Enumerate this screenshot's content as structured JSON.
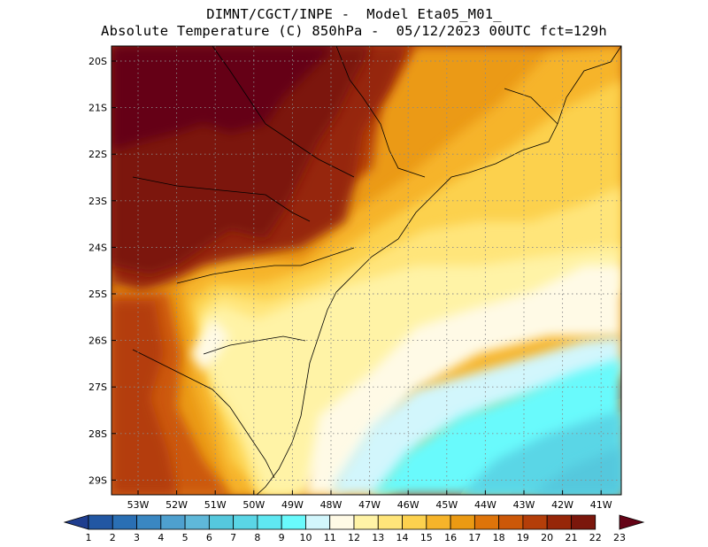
{
  "title": {
    "line1": "DIMNT/CGCT/INPE -  Model Eta05_M01_",
    "line2": "Absolute Temperature (C) 850hPa -  05/12/2023 00UTC fct=129h"
  },
  "map": {
    "lat_labels": [
      "20S",
      "21S",
      "22S",
      "23S",
      "24S",
      "25S",
      "26S",
      "27S",
      "28S",
      "29S"
    ],
    "lon_labels": [
      "53W",
      "52W",
      "51W",
      "50W",
      "49W",
      "48W",
      "47W",
      "46W",
      "45W",
      "44W",
      "43W",
      "42W",
      "41W"
    ]
  },
  "colorbar": {
    "labels": [
      "1",
      "2",
      "3",
      "4",
      "5",
      "6",
      "7",
      "8",
      "9",
      "10",
      "11",
      "12",
      "13",
      "14",
      "15",
      "16",
      "17",
      "18",
      "19",
      "20",
      "21",
      "22",
      "23"
    ],
    "colors": [
      "#1f3e8f",
      "#2257a3",
      "#2a6fb4",
      "#3a87c2",
      "#4ea0cf",
      "#5fb8d9",
      "#55c8dd",
      "#5ad6e6",
      "#5fe8f2",
      "#69fafc",
      "#d2f6fc",
      "#fffae6",
      "#fff3a6",
      "#ffe57a",
      "#fcd14e",
      "#f6b42a",
      "#eb9a13",
      "#de740a",
      "#cc5808",
      "#b43e09",
      "#962608",
      "#7b170c",
      "#650316"
    ]
  }
}
